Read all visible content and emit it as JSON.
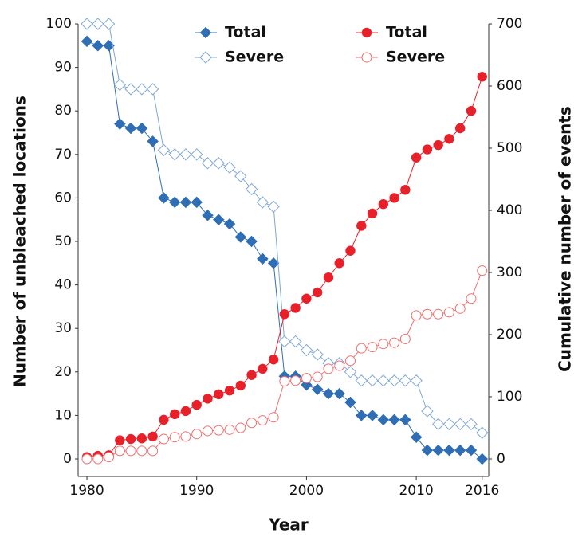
{
  "chart_data": {
    "type": "line",
    "xlabel": "Year",
    "ylabel": "Number of unbleached locations",
    "y2label": "Cumulative number of events",
    "x": [
      1980,
      1981,
      1982,
      1983,
      1984,
      1985,
      1986,
      1987,
      1988,
      1989,
      1990,
      1991,
      1992,
      1993,
      1994,
      1995,
      1996,
      1997,
      1998,
      1999,
      2000,
      2001,
      2002,
      2003,
      2004,
      2005,
      2006,
      2007,
      2008,
      2009,
      2010,
      2011,
      2012,
      2013,
      2014,
      2015,
      2016
    ],
    "xlim": [
      1979.2,
      2016.6
    ],
    "xticks": [
      1980,
      1990,
      2000,
      2010,
      2016
    ],
    "ylim": [
      0,
      100
    ],
    "yticks": [
      0,
      10,
      20,
      30,
      40,
      50,
      60,
      70,
      80,
      90,
      100
    ],
    "y2lim": [
      0,
      700
    ],
    "y2ticks": [
      0,
      100,
      200,
      300,
      400,
      500,
      600,
      700
    ],
    "series": [
      {
        "name": "Total",
        "color": "#2f6eb5",
        "marker": "diamond-filled",
        "values": [
          96,
          95,
          95,
          77,
          76,
          76,
          73,
          60,
          59,
          59,
          59,
          56,
          55,
          54,
          51,
          50,
          46,
          45,
          19,
          19,
          17,
          16,
          15,
          15,
          13,
          10,
          10,
          9,
          9,
          9,
          5,
          2,
          2,
          2,
          2,
          2,
          0
        ]
      },
      {
        "name": "Severe",
        "color": "#7fa7d3",
        "marker": "diamond-open",
        "values": [
          100,
          100,
          100,
          86,
          85,
          85,
          85,
          71,
          70,
          70,
          70,
          68,
          68,
          67,
          65,
          62,
          59,
          58,
          27,
          27,
          25,
          24,
          22,
          22,
          20,
          18,
          18,
          18,
          18,
          18,
          18,
          11,
          8,
          8,
          8,
          8,
          6
        ]
      },
      {
        "name": "Total",
        "color": "#e8202a",
        "marker": "circle-filled",
        "axis": "y2",
        "values": [
          3,
          5,
          6,
          30,
          32,
          33,
          36,
          63,
          72,
          77,
          87,
          97,
          104,
          110,
          118,
          135,
          145,
          160,
          233,
          243,
          258,
          268,
          292,
          315,
          335,
          375,
          395,
          410,
          420,
          433,
          485,
          498,
          505,
          515,
          532,
          560,
          615
        ]
      },
      {
        "name": "Severe",
        "color": "#ee6f6f",
        "marker": "circle-open",
        "axis": "y2",
        "values": [
          0,
          0,
          3,
          13,
          13,
          13,
          13,
          32,
          35,
          36,
          40,
          45,
          46,
          47,
          50,
          58,
          62,
          67,
          125,
          126,
          130,
          132,
          145,
          150,
          158,
          178,
          180,
          185,
          187,
          193,
          231,
          233,
          233,
          236,
          242,
          258,
          303
        ]
      }
    ]
  }
}
